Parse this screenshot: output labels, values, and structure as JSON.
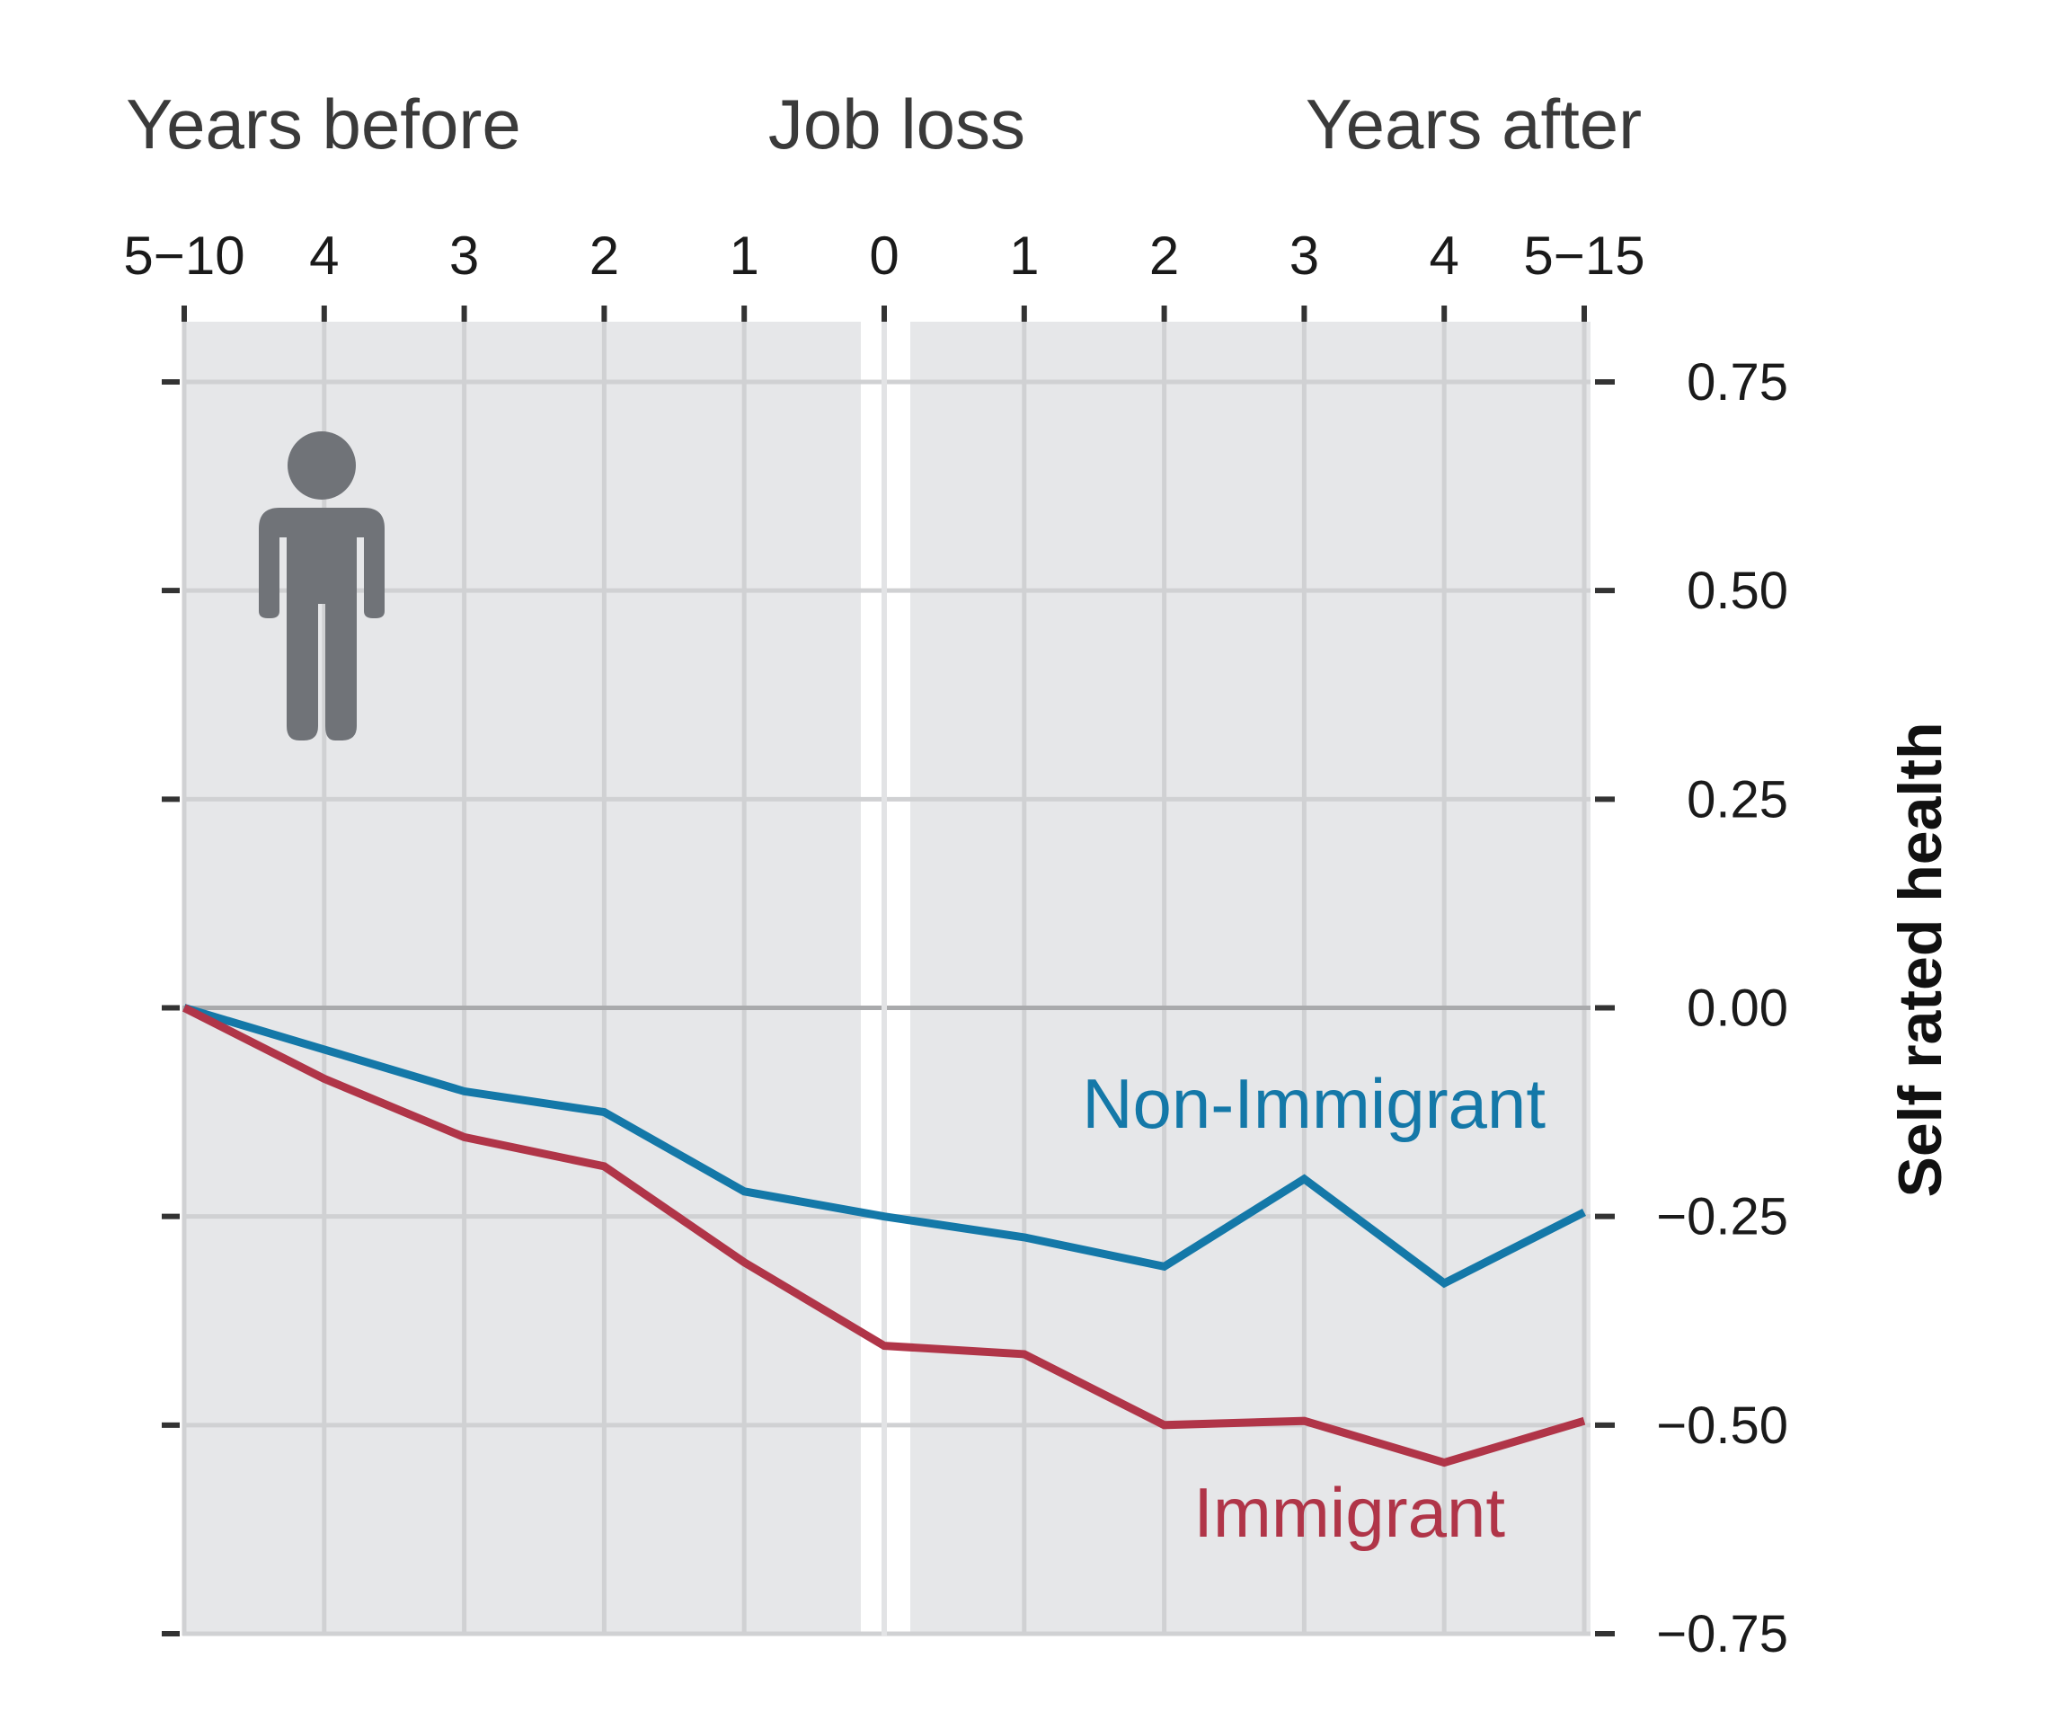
{
  "chart_data": {
    "type": "line",
    "headers": {
      "before": "Years before",
      "event": "Job loss",
      "after": "Years after"
    },
    "x_tick_labels": [
      "5−10",
      "4",
      "3",
      "2",
      "1",
      "0",
      "1",
      "2",
      "3",
      "4",
      "5−15"
    ],
    "y_ticks": [
      0.75,
      0.5,
      0.25,
      0.0,
      -0.25,
      -0.5,
      -0.75
    ],
    "y_tick_labels": [
      "0.75",
      "0.50",
      "0.25",
      "0.00",
      "−0.25",
      "−0.50",
      "−0.75"
    ],
    "ylim": [
      -0.75,
      0.75
    ],
    "ylabel": "Self rated health",
    "xlabel": "",
    "grid": true,
    "series": [
      {
        "name": "Non-Immigrant",
        "color": "#1478a8",
        "values": [
          0.0,
          -0.05,
          -0.1,
          -0.125,
          -0.22,
          -0.25,
          -0.275,
          -0.31,
          -0.205,
          -0.33,
          -0.245
        ]
      },
      {
        "name": "Immigrant",
        "color": "#b03548",
        "values": [
          0.0,
          -0.085,
          -0.155,
          -0.19,
          -0.305,
          -0.405,
          -0.415,
          -0.5,
          -0.495,
          -0.545,
          -0.495
        ]
      }
    ],
    "icon": "person-icon"
  }
}
